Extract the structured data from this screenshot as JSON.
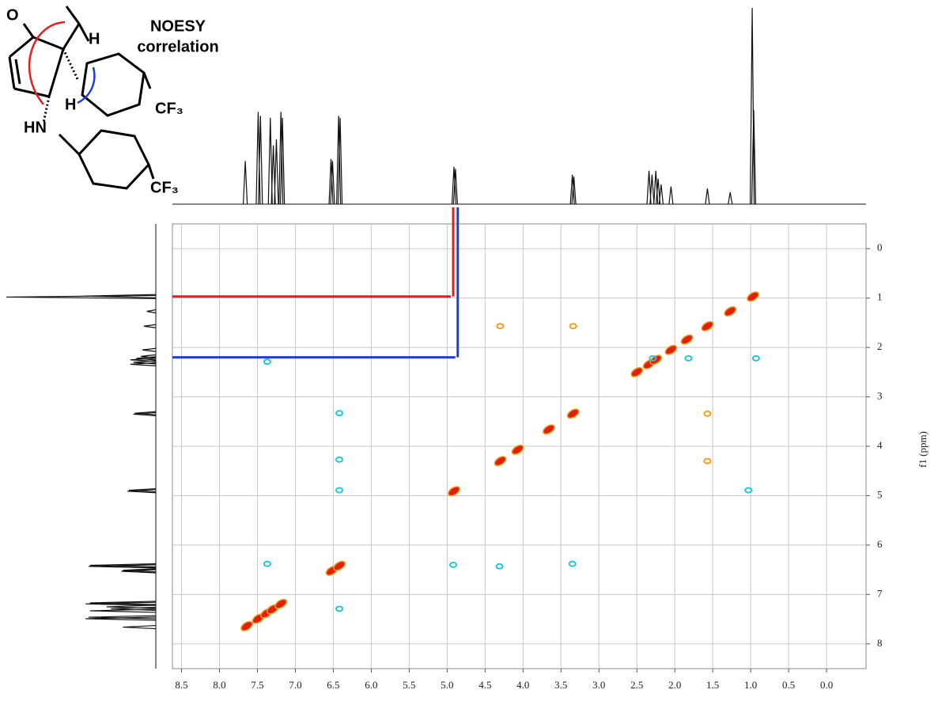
{
  "chart_data": {
    "type": "noesy",
    "annotation_lines": [
      "NOESY",
      "correlation"
    ],
    "molecule_labels": [
      "O",
      "H",
      "H",
      "HN",
      "CF₃",
      "CF₃"
    ],
    "ylabel": "f1 (ppm)",
    "xlim": [
      8.62,
      -0.52
    ],
    "ylim": [
      -0.5,
      8.5
    ],
    "xticks": [
      8.5,
      {
        "value": 8.0,
        "label": "8.0"
      },
      7.5,
      {
        "value": 7.0,
        "label": "7.0"
      },
      6.5,
      {
        "value": 6.0,
        "label": "6.0"
      },
      5.5,
      {
        "value": 5.0,
        "label": "5.0"
      },
      4.5,
      {
        "value": 4.0,
        "label": "4.0"
      },
      3.5,
      {
        "value": 3.0,
        "label": "3.0"
      },
      2.5,
      {
        "value": 2.0,
        "label": "2.0"
      },
      1.5,
      {
        "value": 1.0,
        "label": "1.0"
      },
      0.5,
      {
        "value": 0.0,
        "label": "0.0"
      }
    ],
    "yticks": [
      0,
      1,
      2,
      3,
      4,
      5,
      6,
      7,
      8
    ],
    "grid": true,
    "projection": {
      "color": "#111111",
      "shifts": [
        7.66,
        7.49,
        7.46,
        7.33,
        7.29,
        7.25,
        7.19,
        7.17,
        6.53,
        6.51,
        6.43,
        6.41,
        4.91,
        4.89,
        3.35,
        3.33,
        2.34,
        2.3,
        2.25,
        2.22,
        2.18,
        2.05,
        1.57,
        1.27,
        0.98,
        0.96
      ],
      "heights": [
        22,
        47,
        45,
        44,
        30,
        33,
        47,
        44,
        23,
        22,
        45,
        44,
        19,
        18,
        15,
        14,
        17,
        15,
        17,
        13,
        10,
        9,
        8,
        6,
        100,
        48
      ]
    },
    "diagonal_peaks": {
      "color": "#e0200f",
      "shifts": [
        7.64,
        7.49,
        7.38,
        7.3,
        7.19,
        6.52,
        6.42,
        4.91,
        4.3,
        4.07,
        3.66,
        3.34,
        2.5,
        2.34,
        2.25,
        2.05,
        1.84,
        1.57,
        1.27,
        0.97
      ]
    },
    "cross_peaks_positive": {
      "color": "#f0a020",
      "x": [
        4.3,
        3.34,
        1.57,
        1.57
      ],
      "y": [
        1.57,
        1.57,
        3.34,
        4.3
      ]
    },
    "cross_peaks_negative": {
      "color": "#1ec8d8",
      "x": [
        2.29,
        1.82,
        0.93,
        1.03,
        6.42,
        4.92,
        4.31,
        3.35,
        7.37,
        6.42,
        6.42,
        6.42,
        7.37
      ],
      "y": [
        2.22,
        2.22,
        2.22,
        4.89,
        4.89,
        6.4,
        6.43,
        6.38,
        6.38,
        3.33,
        4.27,
        7.29,
        2.29
      ]
    },
    "correlations": [
      {
        "x": 4.92,
        "y": 0.97,
        "color": "#e02020"
      },
      {
        "x": 4.86,
        "y": 2.2,
        "color": "#1a3fd8"
      }
    ]
  }
}
